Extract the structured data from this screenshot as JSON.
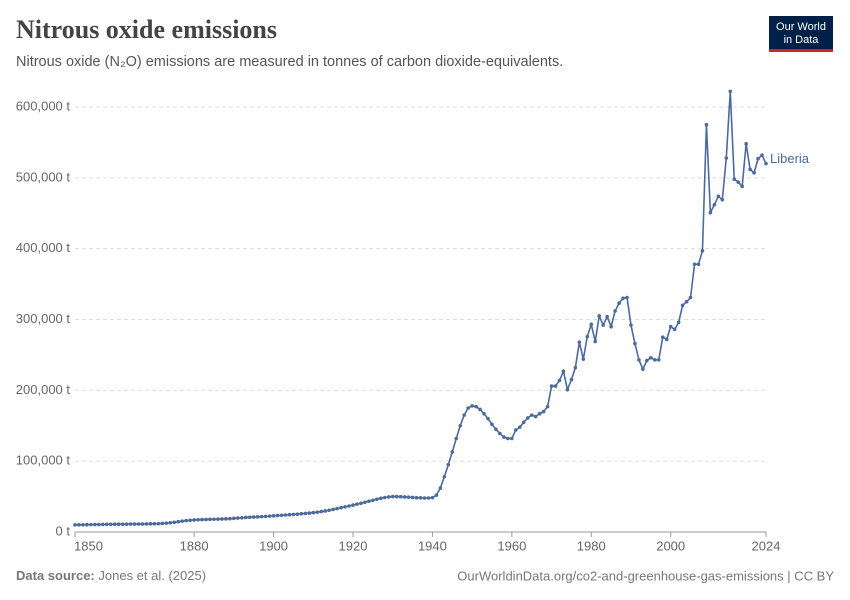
{
  "chart_data": {
    "type": "line",
    "title": "Nitrous oxide emissions",
    "subtitle": "Nitrous oxide (N₂O) emissions are measured in tonnes of carbon dioxide-equivalents.",
    "logo": [
      "Our World",
      "in Data"
    ],
    "source_label": "Data source:",
    "source": "Jones et al. (2025)",
    "credit": "OurWorldinData.org/co2-and-greenhouse-gas-emissions | CC BY",
    "x": [
      1850,
      1851,
      1852,
      1853,
      1854,
      1855,
      1856,
      1857,
      1858,
      1859,
      1860,
      1861,
      1862,
      1863,
      1864,
      1865,
      1866,
      1867,
      1868,
      1869,
      1870,
      1871,
      1872,
      1873,
      1874,
      1875,
      1876,
      1877,
      1878,
      1879,
      1880,
      1881,
      1882,
      1883,
      1884,
      1885,
      1886,
      1887,
      1888,
      1889,
      1890,
      1891,
      1892,
      1893,
      1894,
      1895,
      1896,
      1897,
      1898,
      1899,
      1900,
      1901,
      1902,
      1903,
      1904,
      1905,
      1906,
      1907,
      1908,
      1909,
      1910,
      1911,
      1912,
      1913,
      1914,
      1915,
      1916,
      1917,
      1918,
      1919,
      1920,
      1921,
      1922,
      1923,
      1924,
      1925,
      1926,
      1927,
      1928,
      1929,
      1930,
      1931,
      1932,
      1933,
      1934,
      1935,
      1936,
      1937,
      1938,
      1939,
      1940,
      1941,
      1942,
      1943,
      1944,
      1945,
      1946,
      1947,
      1948,
      1949,
      1950,
      1951,
      1952,
      1953,
      1954,
      1955,
      1956,
      1957,
      1958,
      1959,
      1960,
      1961,
      1962,
      1963,
      1964,
      1965,
      1966,
      1967,
      1968,
      1969,
      1970,
      1971,
      1972,
      1973,
      1974,
      1975,
      1976,
      1977,
      1978,
      1979,
      1980,
      1981,
      1982,
      1983,
      1984,
      1985,
      1986,
      1987,
      1988,
      1989,
      1990,
      1991,
      1992,
      1993,
      1994,
      1995,
      1996,
      1997,
      1998,
      1999,
      2000,
      2001,
      2002,
      2003,
      2004,
      2005,
      2006,
      2007,
      2008,
      2009,
      2010,
      2011,
      2012,
      2013,
      2014,
      2015,
      2016,
      2017,
      2018,
      2019,
      2020,
      2021,
      2022,
      2023,
      2024
    ],
    "series": [
      {
        "name": "Liberia",
        "color": "#4c6a9c",
        "values": [
          10000,
          10100,
          10200,
          10300,
          10400,
          10500,
          10600,
          10700,
          10800,
          10900,
          11000,
          11000,
          11100,
          11100,
          11200,
          11200,
          11300,
          11300,
          11400,
          11500,
          11600,
          11800,
          12100,
          12500,
          13000,
          13700,
          14500,
          15300,
          16000,
          16600,
          17000,
          17300,
          17500,
          17700,
          17900,
          18000,
          18200,
          18400,
          18600,
          18800,
          19300,
          19700,
          20100,
          20500,
          20800,
          21100,
          21400,
          21700,
          22000,
          22400,
          22800,
          23200,
          23600,
          24000,
          24400,
          24800,
          25200,
          25700,
          26200,
          26700,
          27300,
          28000,
          28800,
          29700,
          30700,
          31800,
          33000,
          34300,
          35500,
          36700,
          38000,
          39300,
          40600,
          42000,
          43400,
          44800,
          46200,
          47500,
          48700,
          49500,
          50000,
          50000,
          49800,
          49500,
          49200,
          48800,
          48400,
          48200,
          48000,
          48000,
          48500,
          52000,
          62000,
          78000,
          95000,
          113000,
          132000,
          150000,
          165000,
          175000,
          178000,
          177000,
          173000,
          167000,
          160000,
          152000,
          145000,
          139000,
          134000,
          132000,
          132000,
          144000,
          148000,
          155000,
          161000,
          165000,
          163000,
          167000,
          170000,
          177000,
          206000,
          206000,
          214000,
          227000,
          201000,
          215000,
          232000,
          268000,
          244000,
          276000,
          293000,
          269000,
          305000,
          292000,
          304000,
          290000,
          312000,
          323000,
          330000,
          331000,
          292000,
          266000,
          243000,
          230000,
          242000,
          246000,
          243000,
          243000,
          275000,
          272000,
          290000,
          286000,
          296000,
          320000,
          325000,
          331000,
          378000,
          378000,
          397000,
          575000,
          451000,
          462000,
          474000,
          469000,
          528000,
          622000,
          498000,
          494000,
          488000,
          548000,
          512000,
          507000,
          527000,
          532000,
          520000
        ]
      }
    ],
    "xlim": [
      1850,
      2024
    ],
    "xticks": [
      1850,
      1880,
      1900,
      1920,
      1940,
      1960,
      1980,
      2000,
      2024
    ],
    "ylim": [
      0,
      625000
    ],
    "yticks": [
      {
        "value": 0,
        "label": "0 t"
      },
      {
        "value": 100000,
        "label": "100,000 t"
      },
      {
        "value": 200000,
        "label": "200,000 t"
      },
      {
        "value": 300000,
        "label": "300,000 t"
      },
      {
        "value": 400000,
        "label": "400,000 t"
      },
      {
        "value": 500000,
        "label": "500,000 t"
      },
      {
        "value": 600000,
        "label": "600,000 t"
      }
    ],
    "grid": true
  }
}
